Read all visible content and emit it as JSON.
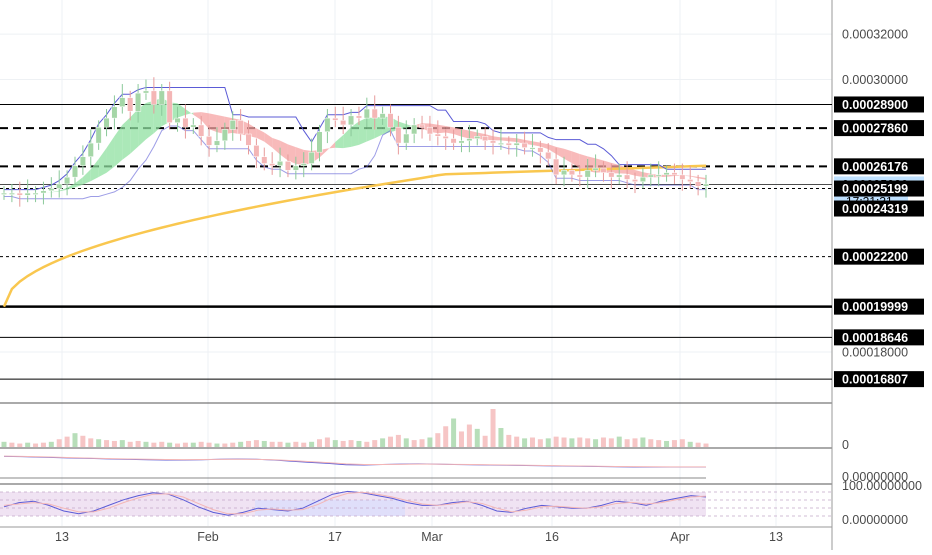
{
  "colors": {
    "grid": "#eef1f4",
    "bull": "#a5d6a7",
    "bear": "#f4b6b6",
    "candle_outline": "#ffffff",
    "ma_yellow": "#f9c74f",
    "cloud_green": "#8fe0a0",
    "cloud_red": "#f5a3a3",
    "channel": "#5b5bd6",
    "black": "#000000",
    "current_badge": "#bfe1ff",
    "stoch_band": "#e9d7ee",
    "stoch_band2": "#d6dcff"
  },
  "chart_data": [
    {
      "type": "candlestick",
      "panel": "price",
      "ylim": [
        0.000158,
        0.000335
      ],
      "y_ticks": [
        "0.00032000",
        "0.00030000",
        "0.00018000"
      ],
      "x_ticks": [
        "13",
        "Feb",
        "17",
        "Mar",
        "16",
        "Apr",
        "13"
      ],
      "horizontal_levels": [
        {
          "value": 0.000289,
          "label": "0.00028900",
          "style": "solid"
        },
        {
          "value": 0.0002786,
          "label": "0.00027860",
          "style": "dashed"
        },
        {
          "value": 0.00026176,
          "label": "0.00026176",
          "style": "dashed"
        },
        {
          "value": 0.0002538,
          "label": "0.00025380",
          "style": "solid-thin",
          "current": true
        },
        {
          "value": 0.00025199,
          "label": "0.00025199",
          "style": "dotted"
        },
        {
          "value": 0.00024319,
          "label": "0.00024319",
          "style": "none"
        },
        {
          "value": 0.000222,
          "label": "0.00022200",
          "style": "dotted"
        },
        {
          "value": 0.00019999,
          "label": "0.00019999",
          "style": "solid-thick"
        },
        {
          "value": 0.00018646,
          "label": "0.00018646",
          "style": "solid"
        },
        {
          "value": 0.00016807,
          "label": "0.00016807",
          "style": "solid"
        }
      ],
      "countdown": "17:21:31",
      "closes": [
        0.00025,
        0.00025,
        0.000249,
        0.00025,
        0.00025,
        0.000251,
        0.000252,
        0.000254,
        0.000257,
        0.000262,
        0.000266,
        0.000272,
        0.000279,
        0.000283,
        0.000288,
        0.000292,
        0.000286,
        0.000294,
        0.000295,
        0.000289,
        0.000295,
        0.000281,
        0.000283,
        0.000279,
        0.00028,
        0.000275,
        0.000271,
        0.000273,
        0.000278,
        0.000282,
        0.000276,
        0.000271,
        0.000266,
        0.000263,
        0.000262,
        0.000264,
        0.00026,
        0.000262,
        0.000263,
        0.000268,
        0.000277,
        0.000283,
        0.000282,
        0.00028,
        0.000284,
        0.000283,
        0.000287,
        0.000283,
        0.000285,
        0.000279,
        0.000272,
        0.000276,
        0.00028,
        0.000279,
        0.000276,
        0.000275,
        0.000274,
        0.000272,
        0.000273,
        0.000274,
        0.000275,
        0.000273,
        0.000272,
        0.000272,
        0.000271,
        0.000272,
        0.00027,
        0.00027,
        0.000268,
        0.000265,
        0.000258,
        0.00026,
        0.000258,
        0.000257,
        0.00026,
        0.000261,
        0.000259,
        0.000257,
        0.000258,
        0.000256,
        0.000255,
        0.000257,
        0.000258,
        0.000258,
        0.000259,
        0.000258,
        0.000256,
        0.000255,
        0.000253,
        0.000254
      ],
      "series": [
        {
          "kind": "moving_average",
          "color_key": "ma_yellow"
        },
        {
          "kind": "channel_upper",
          "color_key": "channel"
        },
        {
          "kind": "cloud",
          "colors": [
            "cloud_green",
            "cloud_red"
          ]
        }
      ]
    },
    {
      "type": "bar",
      "panel": "volume",
      "y_ticks": [
        "0"
      ],
      "values": [
        0.6,
        0.5,
        0.4,
        0.5,
        0.4,
        0.5,
        0.6,
        0.9,
        1.2,
        1.6,
        1.3,
        1.0,
        0.9,
        0.8,
        0.7,
        0.8,
        0.6,
        0.7,
        0.6,
        0.5,
        0.6,
        0.5,
        0.4,
        0.5,
        0.5,
        0.6,
        0.5,
        0.4,
        0.4,
        0.5,
        0.6,
        0.7,
        0.8,
        0.7,
        0.6,
        0.6,
        0.5,
        0.6,
        0.5,
        0.6,
        0.9,
        1.1,
        0.8,
        0.7,
        0.8,
        0.7,
        0.6,
        0.8,
        1.0,
        1.2,
        1.4,
        1.0,
        0.8,
        0.9,
        1.1,
        1.6,
        2.4,
        3.3,
        1.8,
        2.6,
        2.1,
        1.3,
        4.4,
        2.2,
        1.4,
        1.2,
        1.0,
        1.1,
        0.9,
        1.0,
        1.2,
        1.1,
        1.0,
        1.1,
        1.0,
        0.9,
        1.1,
        1.0,
        1.2,
        0.9,
        1.0,
        1.1,
        0.9,
        0.8,
        0.7,
        0.8,
        0.9,
        0.6,
        0.5,
        0.4
      ]
    },
    {
      "type": "line",
      "panel": "macd",
      "y_ticks": [
        "0.00000000"
      ],
      "series": [
        {
          "values": [
            0.8,
            0.78,
            0.74,
            0.7,
            0.66,
            0.62,
            0.58,
            0.55,
            0.52,
            0.5,
            0.5,
            0.52,
            0.56,
            0.58,
            0.56,
            0.5,
            0.4,
            0.3,
            0.22,
            0.1,
            0.08,
            0.12,
            0.16,
            0.18,
            0.16,
            0.12,
            0.1,
            0.08,
            0.06,
            0.04,
            0.02,
            0.0,
            -0.02,
            -0.04,
            -0.06,
            -0.08,
            -0.08,
            -0.08,
            -0.08,
            -0.08
          ],
          "color_key": "channel"
        },
        {
          "values": [
            0.82,
            0.8,
            0.77,
            0.73,
            0.69,
            0.65,
            0.61,
            0.58,
            0.56,
            0.54,
            0.53,
            0.54,
            0.55,
            0.56,
            0.55,
            0.52,
            0.45,
            0.36,
            0.28,
            0.18,
            0.12,
            0.12,
            0.14,
            0.16,
            0.16,
            0.14,
            0.12,
            0.1,
            0.08,
            0.06,
            0.04,
            0.02,
            0.0,
            -0.02,
            -0.04,
            -0.05,
            -0.06,
            -0.07,
            -0.07,
            -0.07
          ],
          "color_key": "bear"
        }
      ]
    },
    {
      "type": "line",
      "panel": "stochastic",
      "y_ticks": [
        "100.00000000",
        "0.00000000"
      ],
      "ylim": [
        0,
        100
      ],
      "series": [
        {
          "values": [
            40,
            55,
            60,
            45,
            25,
            15,
            25,
            45,
            65,
            80,
            90,
            85,
            65,
            40,
            20,
            10,
            20,
            35,
            30,
            25,
            35,
            60,
            85,
            95,
            90,
            80,
            70,
            55,
            45,
            45,
            55,
            60,
            45,
            25,
            20,
            35,
            45,
            40,
            35,
            35,
            45,
            60,
            55,
            45,
            60,
            70,
            80,
            75
          ],
          "color_key": "channel"
        },
        {
          "values": [
            45,
            50,
            55,
            50,
            35,
            22,
            22,
            35,
            55,
            72,
            85,
            86,
            75,
            52,
            30,
            15,
            15,
            28,
            32,
            28,
            30,
            48,
            72,
            88,
            92,
            85,
            75,
            62,
            50,
            45,
            50,
            58,
            52,
            35,
            22,
            28,
            40,
            42,
            38,
            35,
            40,
            52,
            56,
            50,
            55,
            65,
            75,
            78
          ],
          "color_key": "bear"
        }
      ]
    }
  ]
}
